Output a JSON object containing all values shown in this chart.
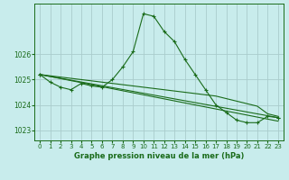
{
  "title": "Graphe pression niveau de la mer (hPa)",
  "bg_color": "#c8ecec",
  "grid_color": "#aacccc",
  "line_color": "#1a6b1a",
  "xlim": [
    -0.5,
    23.5
  ],
  "ylim": [
    1022.6,
    1028.0
  ],
  "yticks": [
    1023,
    1024,
    1025,
    1026
  ],
  "xticks": [
    0,
    1,
    2,
    3,
    4,
    5,
    6,
    7,
    8,
    9,
    10,
    11,
    12,
    13,
    14,
    15,
    16,
    17,
    18,
    19,
    20,
    21,
    22,
    23
  ],
  "series": [
    {
      "x": [
        0,
        1,
        2,
        3,
        4,
        5,
        6,
        7,
        8,
        9,
        10,
        11,
        12,
        13,
        14,
        15,
        16,
        17,
        18,
        19,
        20,
        21,
        22,
        23
      ],
      "y": [
        1025.2,
        1024.9,
        1024.7,
        1024.6,
        1024.85,
        1024.75,
        1024.7,
        1025.0,
        1025.5,
        1026.1,
        1027.6,
        1027.5,
        1026.9,
        1026.5,
        1025.8,
        1025.2,
        1024.6,
        1024.0,
        1023.7,
        1023.4,
        1023.3,
        1023.3,
        1023.55,
        1023.5
      ],
      "marker": "+"
    },
    {
      "x": [
        0,
        1,
        2,
        3,
        4,
        5,
        6,
        7,
        8,
        9,
        10,
        11,
        12,
        13,
        14,
        15,
        16,
        17,
        18,
        19,
        20,
        21,
        22,
        23
      ],
      "y": [
        1025.2,
        1025.15,
        1025.1,
        1025.05,
        1025.0,
        1024.95,
        1024.9,
        1024.85,
        1024.8,
        1024.75,
        1024.7,
        1024.65,
        1024.6,
        1024.55,
        1024.5,
        1024.45,
        1024.4,
        1024.35,
        1024.25,
        1024.15,
        1024.05,
        1023.95,
        1023.65,
        1023.55
      ],
      "marker": null
    },
    {
      "x": [
        0,
        1,
        2,
        3,
        4,
        5,
        6,
        7,
        8,
        9,
        10,
        11,
        12,
        13,
        14,
        15,
        16,
        17,
        18,
        19,
        20,
        21,
        22,
        23
      ],
      "y": [
        1025.2,
        1025.12,
        1025.04,
        1024.96,
        1024.88,
        1024.8,
        1024.72,
        1024.64,
        1024.56,
        1024.48,
        1024.4,
        1024.32,
        1024.24,
        1024.16,
        1024.08,
        1024.0,
        1023.92,
        1023.84,
        1023.76,
        1023.68,
        1023.6,
        1023.52,
        1023.44,
        1023.36
      ],
      "marker": null
    },
    {
      "x": [
        0,
        23
      ],
      "y": [
        1025.2,
        1023.5
      ],
      "marker": "+"
    }
  ]
}
